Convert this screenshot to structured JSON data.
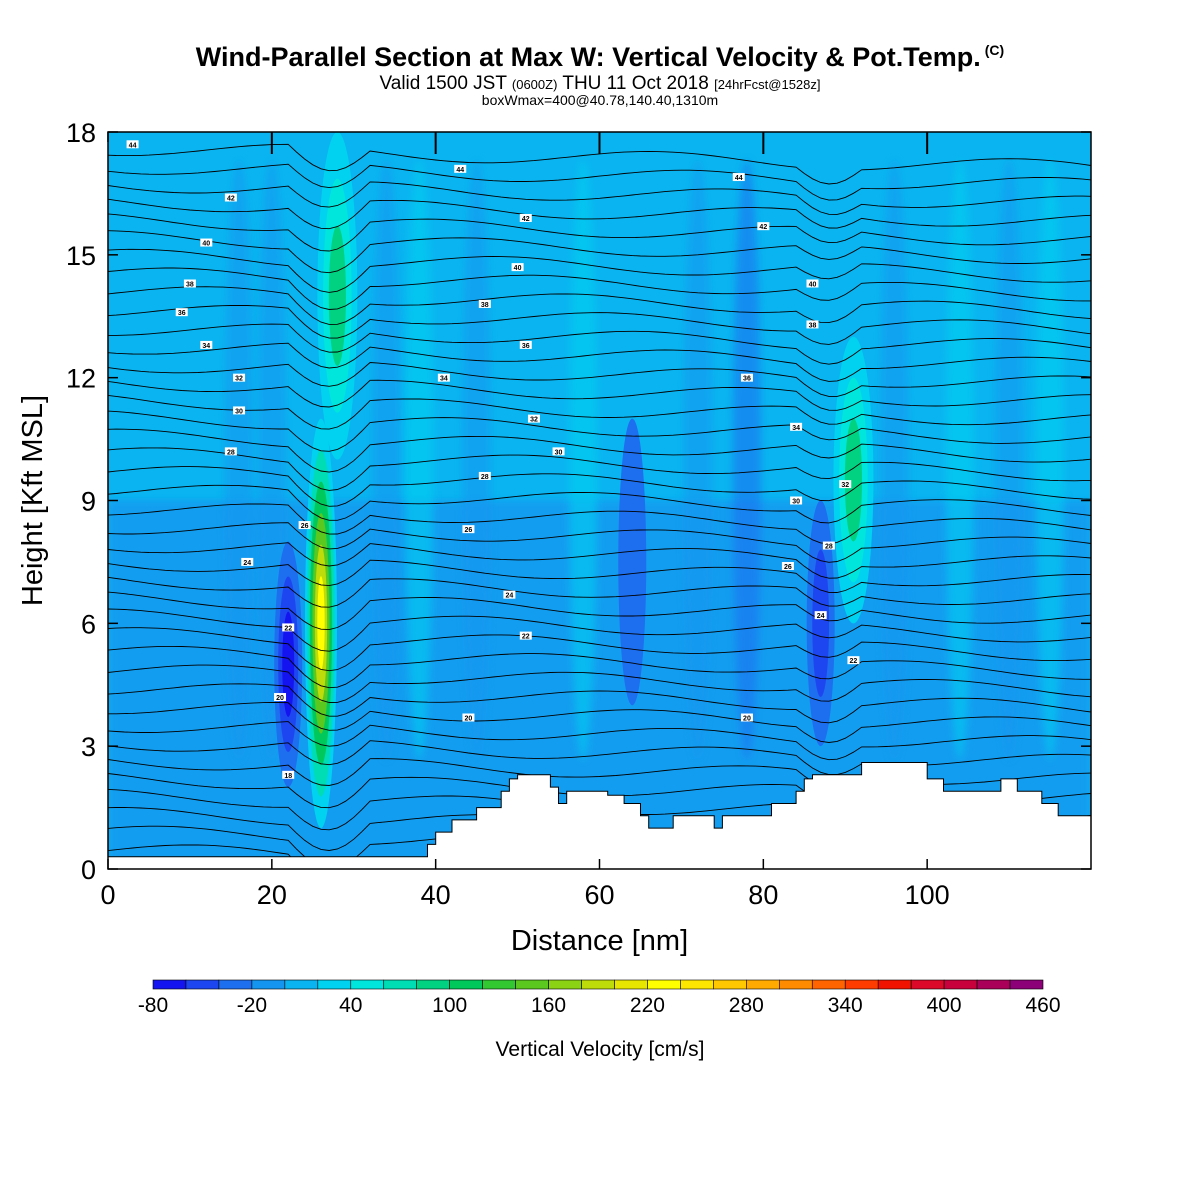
{
  "header": {
    "title": "Wind-Parallel Section at Max W: Vertical Velocity & Pot.Temp.",
    "copyright": "(C)",
    "subtitle_main": "Valid 1500 JST",
    "subtitle_utc": "(0600Z)",
    "subtitle_date": "THU 11 Oct 2018",
    "subtitle_fcst": "[24hrFcst@1528z]",
    "subtitle2": "boxWmax=400@40.78,140.40,1310m"
  },
  "chart_data": {
    "type": "heatmap",
    "xlabel": "Distance [nm]",
    "ylabel": "Height [Kft MSL]",
    "xlim": [
      0,
      120
    ],
    "ylim": [
      0,
      18
    ],
    "x_ticks": [
      "0",
      "20",
      "40",
      "60",
      "80",
      "100"
    ],
    "y_ticks": [
      "0",
      "3",
      "6",
      "9",
      "12",
      "15",
      "18"
    ],
    "colorbar": {
      "title": "Vertical Velocity [cm/s]",
      "levels": [
        -80,
        -60,
        -40,
        -20,
        0,
        20,
        40,
        60,
        80,
        100,
        120,
        140,
        160,
        180,
        200,
        220,
        240,
        260,
        280,
        300,
        320,
        340,
        360,
        380,
        400,
        420,
        440,
        460
      ],
      "tick_labels": [
        "-80",
        "-20",
        "40",
        "100",
        "160",
        "220",
        "280",
        "340",
        "400",
        "460"
      ],
      "colors": [
        "#1414f0",
        "#1e46f0",
        "#1e6ef0",
        "#1496f0",
        "#0ab4f0",
        "#00d2f0",
        "#00e6dc",
        "#00dcb4",
        "#00d282",
        "#00c85a",
        "#32c832",
        "#5ac81e",
        "#8cd214",
        "#bedc0a",
        "#e6e600",
        "#ffff00",
        "#ffe600",
        "#ffc800",
        "#ffaa00",
        "#ff8c00",
        "#ff6400",
        "#ff3c00",
        "#f01400",
        "#dc0a28",
        "#c8003c",
        "#aa005a",
        "#8c0078"
      ]
    },
    "velocity_features": [
      {
        "x": 26,
        "z_range": [
          1,
          11
        ],
        "peak_cms": 260,
        "sign": "updraft"
      },
      {
        "x": 22,
        "z_range": [
          2,
          8
        ],
        "peak_cms": -80,
        "sign": "downdraft"
      },
      {
        "x": 28,
        "z_range": [
          10,
          18
        ],
        "peak_cms": 90,
        "sign": "updraft"
      },
      {
        "x": 64,
        "z_range": [
          4,
          11
        ],
        "peak_cms": -40,
        "sign": "downdraft"
      },
      {
        "x": 87,
        "z_range": [
          3,
          9
        ],
        "peak_cms": -60,
        "sign": "downdraft"
      },
      {
        "x": 91,
        "z_range": [
          6,
          13
        ],
        "peak_cms": 80,
        "sign": "updraft"
      }
    ],
    "theta_labels": [
      {
        "text": "44",
        "x": 3,
        "z": 17.7
      },
      {
        "text": "44",
        "x": 43,
        "z": 17.1
      },
      {
        "text": "44",
        "x": 77,
        "z": 16.9
      },
      {
        "text": "42",
        "x": 15,
        "z": 16.4
      },
      {
        "text": "42",
        "x": 51,
        "z": 15.9
      },
      {
        "text": "42",
        "x": 80,
        "z": 15.7
      },
      {
        "text": "40",
        "x": 12,
        "z": 15.3
      },
      {
        "text": "40",
        "x": 50,
        "z": 14.7
      },
      {
        "text": "40",
        "x": 86,
        "z": 14.3
      },
      {
        "text": "38",
        "x": 10,
        "z": 14.3
      },
      {
        "text": "38",
        "x": 46,
        "z": 13.8
      },
      {
        "text": "38",
        "x": 86,
        "z": 13.3
      },
      {
        "text": "36",
        "x": 9,
        "z": 13.6
      },
      {
        "text": "36",
        "x": 51,
        "z": 12.8
      },
      {
        "text": "36",
        "x": 78,
        "z": 12.0
      },
      {
        "text": "34",
        "x": 12,
        "z": 12.8
      },
      {
        "text": "34",
        "x": 41,
        "z": 12.0
      },
      {
        "text": "34",
        "x": 84,
        "z": 10.8
      },
      {
        "text": "32",
        "x": 16,
        "z": 12.0
      },
      {
        "text": "32",
        "x": 52,
        "z": 11.0
      },
      {
        "text": "32",
        "x": 90,
        "z": 9.4
      },
      {
        "text": "30",
        "x": 16,
        "z": 11.2
      },
      {
        "text": "30",
        "x": 55,
        "z": 10.2
      },
      {
        "text": "30",
        "x": 84,
        "z": 9.0
      },
      {
        "text": "28",
        "x": 15,
        "z": 10.2
      },
      {
        "text": "28",
        "x": 46,
        "z": 9.6
      },
      {
        "text": "28",
        "x": 88,
        "z": 7.9
      },
      {
        "text": "26",
        "x": 24,
        "z": 8.4
      },
      {
        "text": "26",
        "x": 44,
        "z": 8.3
      },
      {
        "text": "26",
        "x": 83,
        "z": 7.4
      },
      {
        "text": "24",
        "x": 17,
        "z": 7.5
      },
      {
        "text": "24",
        "x": 49,
        "z": 6.7
      },
      {
        "text": "24",
        "x": 87,
        "z": 6.2
      },
      {
        "text": "22",
        "x": 22,
        "z": 5.9
      },
      {
        "text": "22",
        "x": 51,
        "z": 5.7
      },
      {
        "text": "22",
        "x": 91,
        "z": 5.1
      },
      {
        "text": "20",
        "x": 21,
        "z": 4.2
      },
      {
        "text": "20",
        "x": 44,
        "z": 3.7
      },
      {
        "text": "20",
        "x": 78,
        "z": 3.7
      },
      {
        "text": "18",
        "x": 22,
        "z": 2.3
      }
    ],
    "terrain": [
      [
        0,
        0.3
      ],
      [
        10,
        0.3
      ],
      [
        20,
        0.3
      ],
      [
        30,
        0.3
      ],
      [
        39,
        0.3
      ],
      [
        39,
        0.6
      ],
      [
        40,
        0.6
      ],
      [
        40,
        0.9
      ],
      [
        42,
        0.9
      ],
      [
        42,
        1.2
      ],
      [
        45,
        1.2
      ],
      [
        45,
        1.5
      ],
      [
        48,
        1.5
      ],
      [
        48,
        1.9
      ],
      [
        49,
        1.9
      ],
      [
        49,
        2.2
      ],
      [
        50,
        2.2
      ],
      [
        50,
        2.3
      ],
      [
        54,
        2.3
      ],
      [
        54,
        2.0
      ],
      [
        55,
        2.0
      ],
      [
        55,
        1.6
      ],
      [
        56,
        1.6
      ],
      [
        56,
        1.9
      ],
      [
        61,
        1.9
      ],
      [
        61,
        1.8
      ],
      [
        63,
        1.8
      ],
      [
        63,
        1.6
      ],
      [
        65,
        1.6
      ],
      [
        65,
        1.3
      ],
      [
        66,
        1.3
      ],
      [
        66,
        1.0
      ],
      [
        69,
        1.0
      ],
      [
        69,
        1.3
      ],
      [
        74,
        1.3
      ],
      [
        74,
        1.0
      ],
      [
        75,
        1.0
      ],
      [
        75,
        1.3
      ],
      [
        81,
        1.3
      ],
      [
        81,
        1.6
      ],
      [
        84,
        1.6
      ],
      [
        84,
        1.9
      ],
      [
        85,
        1.9
      ],
      [
        85,
        2.2
      ],
      [
        86,
        2.2
      ],
      [
        86,
        2.3
      ],
      [
        92,
        2.3
      ],
      [
        92,
        2.6
      ],
      [
        100,
        2.6
      ],
      [
        100,
        2.2
      ],
      [
        102,
        2.2
      ],
      [
        102,
        1.9
      ],
      [
        109,
        1.9
      ],
      [
        109,
        2.2
      ],
      [
        111,
        2.2
      ],
      [
        111,
        1.9
      ],
      [
        114,
        1.9
      ],
      [
        114,
        1.6
      ],
      [
        116,
        1.6
      ],
      [
        116,
        1.3
      ],
      [
        120,
        1.3
      ]
    ]
  }
}
